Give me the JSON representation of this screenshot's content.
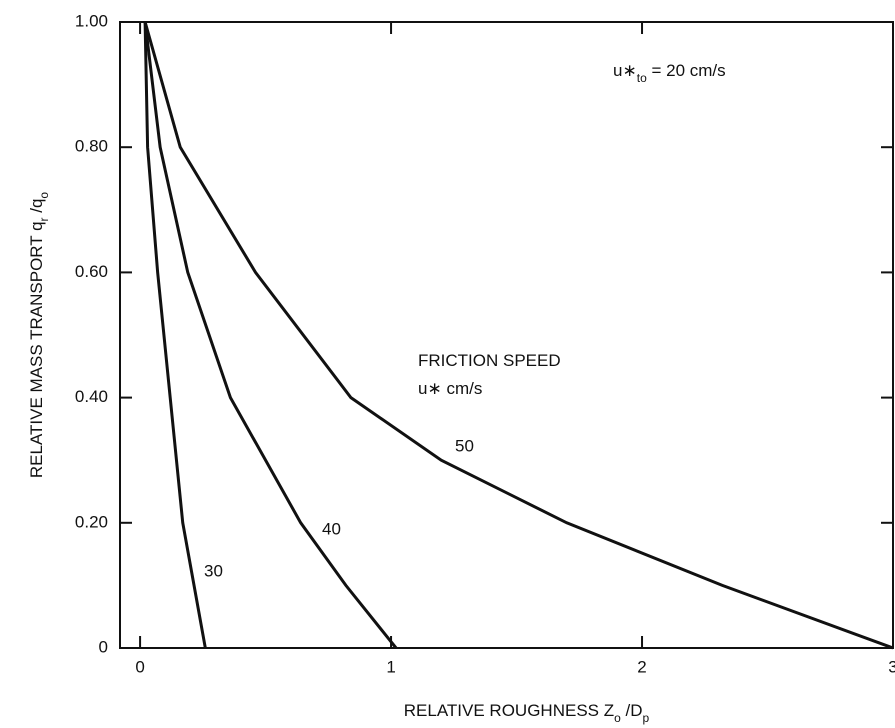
{
  "chart_data": {
    "type": "line",
    "x_label": [
      "RELATIVE ROUGHNESS  Z",
      "o",
      " /D",
      "p"
    ],
    "y_label": [
      "RELATIVE MASS TRANSPORT  q",
      "r",
      " /q",
      "o"
    ],
    "annotations": [
      {
        "parts": [
          "u",
          "∗",
          "t",
          "o",
          " = 20 cm/s"
        ]
      },
      {
        "parts": [
          "FRICTION SPEED"
        ]
      },
      {
        "parts": [
          "u",
          "∗",
          " cm/s"
        ]
      }
    ],
    "xlim": [
      -0.08,
      3.0
    ],
    "ylim": [
      0,
      1.0
    ],
    "xticks": [
      0,
      1,
      2,
      3
    ],
    "yticks": [
      {
        "value": 0,
        "label": "0"
      },
      {
        "value": 0.2,
        "label": "0.20"
      },
      {
        "value": 0.4,
        "label": "0.40"
      },
      {
        "value": 0.6,
        "label": "0.60"
      },
      {
        "value": 0.8,
        "label": "0.80"
      },
      {
        "value": 1.0,
        "label": "1.00"
      }
    ],
    "grid": false,
    "series": [
      {
        "name": "30",
        "color": "#111111",
        "x": [
          0.02,
          0.03,
          0.07,
          0.12,
          0.17,
          0.26
        ],
        "values": [
          1.0,
          0.8,
          0.6,
          0.4,
          0.2,
          0
        ]
      },
      {
        "name": "40",
        "color": "#111111",
        "x": [
          0.02,
          0.08,
          0.19,
          0.36,
          0.64,
          0.82,
          1.02
        ],
        "values": [
          1.0,
          0.8,
          0.6,
          0.4,
          0.2,
          0.1,
          0
        ]
      },
      {
        "name": "50",
        "color": "#111111",
        "x": [
          0.02,
          0.16,
          0.46,
          0.84,
          1.2,
          1.7,
          2.32,
          3.0
        ],
        "values": [
          1.0,
          0.8,
          0.6,
          0.4,
          0.3,
          0.2,
          0.1,
          0
        ]
      }
    ]
  }
}
